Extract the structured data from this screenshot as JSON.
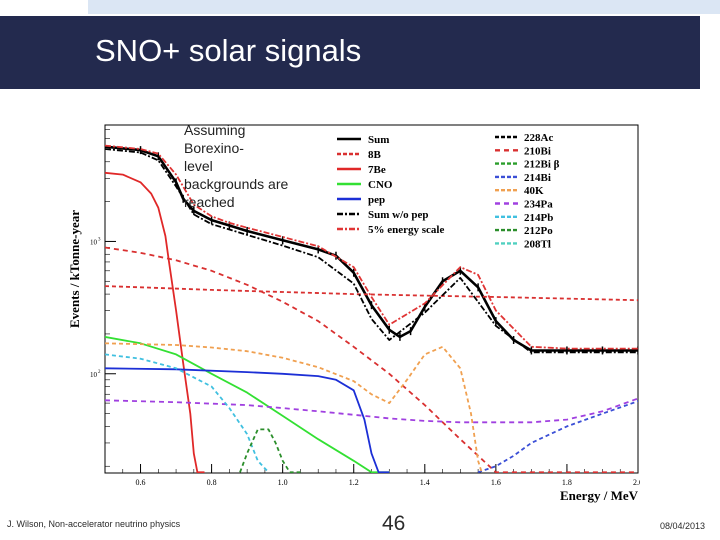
{
  "slide": {
    "title": "SNO+ solar signals",
    "footer_author": "J. Wilson, Non-accelerator neutrino physics",
    "page_number": "46",
    "date": "08/04/2013"
  },
  "chart_data": {
    "type": "line",
    "title": "",
    "xlabel": "Energy / MeV",
    "ylabel": "Events / kTonne-year",
    "xlim": [
      0.5,
      2.0
    ],
    "ylim_log10": [
      1.25,
      3.88
    ],
    "y_scale": "log",
    "x_ticks": [
      0.6,
      0.8,
      1.0,
      1.2,
      1.4,
      1.6,
      1.8,
      2.0
    ],
    "x_tick_labels": [
      "0.6",
      "0.8",
      "1.0",
      "1.2",
      "1.4",
      "1.6",
      "1.8",
      "2.0"
    ],
    "y_ticks_log10": [
      2,
      3
    ],
    "y_tick_labels": [
      "10",
      "10"
    ],
    "y_tick_exponents": [
      "2",
      "3"
    ],
    "annotation": "Assuming Borexino-level backgrounds are reached",
    "legend_position": "top-right",
    "series": [
      {
        "name": "Sum",
        "color": "#000000",
        "dash": "none",
        "x": [
          0.5,
          0.6,
          0.65,
          0.7,
          0.72,
          0.75,
          0.8,
          0.85,
          0.9,
          1.0,
          1.1,
          1.15,
          1.2,
          1.25,
          1.3,
          1.33,
          1.36,
          1.4,
          1.45,
          1.5,
          1.55,
          1.6,
          1.65,
          1.7,
          1.8,
          1.9,
          2.0
        ],
        "y": [
          5200,
          4900,
          4400,
          2800,
          2100,
          1700,
          1450,
          1320,
          1200,
          1020,
          870,
          780,
          580,
          330,
          215,
          190,
          210,
          320,
          500,
          600,
          450,
          250,
          180,
          150,
          150,
          150,
          150
        ]
      },
      {
        "name": "8B",
        "color": "#d93030",
        "dash": "4,3",
        "x": [
          0.5,
          0.6,
          0.8,
          1.0,
          1.2,
          1.4,
          1.6,
          1.8,
          2.0
        ],
        "y": [
          460,
          450,
          430,
          415,
          400,
          390,
          380,
          370,
          360
        ]
      },
      {
        "name": "7Be",
        "color": "#e02828",
        "dash": "none",
        "x": [
          0.5,
          0.55,
          0.6,
          0.63,
          0.65,
          0.67,
          0.68,
          0.7,
          0.72,
          0.74,
          0.75,
          0.76,
          0.78
        ],
        "y": [
          3300,
          3200,
          2800,
          2300,
          1800,
          1100,
          700,
          300,
          120,
          50,
          25,
          18,
          18
        ]
      },
      {
        "name": "CNO",
        "color": "#33e033",
        "dash": "none",
        "x": [
          0.5,
          0.6,
          0.7,
          0.8,
          0.9,
          1.0,
          1.1,
          1.2,
          1.25,
          1.3
        ],
        "y": [
          190,
          170,
          140,
          100,
          72,
          48,
          32,
          22,
          18,
          18
        ]
      },
      {
        "name": "pep",
        "color": "#1c2fd6",
        "dash": "none",
        "x": [
          0.5,
          0.7,
          0.9,
          1.0,
          1.1,
          1.15,
          1.2,
          1.23,
          1.25,
          1.27,
          1.3
        ],
        "y": [
          110,
          108,
          103,
          100,
          96,
          90,
          75,
          45,
          25,
          18,
          18
        ]
      },
      {
        "name": "Sum w/o pep",
        "color": "#000000",
        "dash": "6,2,2,2",
        "x": [
          0.5,
          0.6,
          0.65,
          0.7,
          0.75,
          0.8,
          0.85,
          0.9,
          1.0,
          1.1,
          1.2,
          1.25,
          1.3,
          1.4,
          1.5,
          1.6,
          1.7,
          1.8,
          1.9,
          2.0
        ],
        "y": [
          5000,
          4700,
          4100,
          2600,
          1600,
          1350,
          1230,
          1120,
          930,
          760,
          480,
          260,
          180,
          290,
          530,
          230,
          145,
          145,
          145,
          145
        ]
      },
      {
        "name": "5% energy scale",
        "color": "#e03535",
        "dash": "6,2,2,2",
        "x": [
          0.5,
          0.6,
          0.65,
          0.7,
          0.75,
          0.8,
          0.85,
          0.9,
          1.0,
          1.1,
          1.2,
          1.25,
          1.3,
          1.4,
          1.5,
          1.55,
          1.6,
          1.7,
          1.8,
          1.9,
          2.0
        ],
        "y": [
          5300,
          5000,
          4600,
          3200,
          1900,
          1550,
          1380,
          1270,
          1080,
          920,
          640,
          380,
          235,
          340,
          640,
          560,
          300,
          160,
          155,
          155,
          155
        ]
      },
      {
        "name": "228Ac",
        "color": "#000000",
        "dash": "4,3",
        "x": [
          0.5,
          2.0
        ],
        "y": [
          0,
          0
        ]
      },
      {
        "name": "210Bi",
        "color": "#d93030",
        "dash": "5,4",
        "x": [
          0.5,
          0.6,
          0.7,
          0.8,
          0.9,
          1.0,
          1.1,
          1.2,
          1.3,
          1.4,
          1.5,
          1.6,
          1.7,
          1.8,
          1.9,
          2.0
        ],
        "y": [
          900,
          820,
          720,
          600,
          470,
          350,
          250,
          160,
          100,
          58,
          32,
          18,
          18,
          18,
          18,
          18
        ]
      },
      {
        "name": "212Bi β",
        "color": "#2b9e2b",
        "dash": "4,3",
        "x": [
          0.5,
          2.0
        ],
        "y": [
          0,
          0
        ]
      },
      {
        "name": "214Bi",
        "color": "#3b4fd6",
        "dash": "4,3",
        "x": [
          1.55,
          1.6,
          1.65,
          1.7,
          1.8,
          1.9,
          2.0
        ],
        "y": [
          18,
          20,
          24,
          30,
          40,
          50,
          62
        ]
      },
      {
        "name": "40K",
        "color": "#f0a050",
        "dash": "4,3",
        "x": [
          0.5,
          0.7,
          0.8,
          0.9,
          1.0,
          1.1,
          1.2,
          1.25,
          1.3,
          1.35,
          1.4,
          1.45,
          1.5,
          1.53,
          1.55,
          1.56
        ],
        "y": [
          170,
          165,
          158,
          148,
          132,
          112,
          88,
          70,
          60,
          90,
          140,
          160,
          110,
          50,
          22,
          18
        ]
      },
      {
        "name": "234Pa",
        "color": "#a040e0",
        "dash": "5,4",
        "x": [
          0.5,
          0.7,
          0.9,
          1.0,
          1.1,
          1.2,
          1.3,
          1.4,
          1.5,
          1.6,
          1.7,
          1.8,
          1.9,
          2.0
        ],
        "y": [
          63,
          61,
          58,
          55,
          52,
          49,
          46,
          44,
          43,
          43,
          43,
          45,
          52,
          65
        ]
      },
      {
        "name": "214Pb",
        "color": "#40c0e0",
        "dash": "4,3",
        "x": [
          0.5,
          0.6,
          0.7,
          0.8,
          0.85,
          0.9,
          0.93,
          0.96
        ],
        "y": [
          140,
          130,
          110,
          80,
          55,
          35,
          22,
          18
        ]
      },
      {
        "name": "212Po",
        "color": "#2b8e2b",
        "dash": "4,3",
        "x": [
          0.88,
          0.9,
          0.93,
          0.96,
          0.98,
          1.0,
          1.02,
          1.05
        ],
        "y": [
          18,
          25,
          38,
          38,
          30,
          22,
          18,
          18
        ]
      },
      {
        "name": "208Tl",
        "color": "#50d0c0",
        "dash": "4,3",
        "x": [
          0.5,
          2.0
        ],
        "y": [
          0,
          0
        ]
      }
    ]
  }
}
